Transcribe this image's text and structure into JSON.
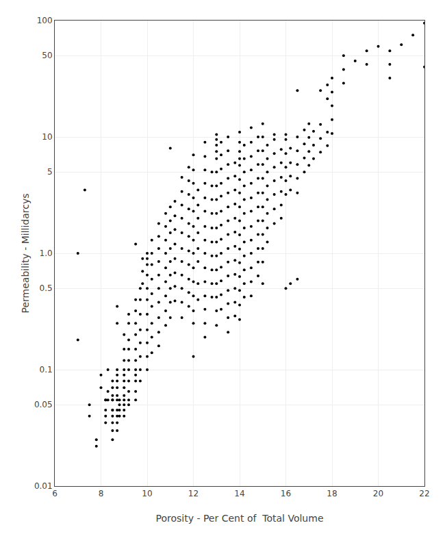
{
  "chart_data": {
    "type": "scatter",
    "xlabel": "Porosity - Per Cent of  Total Volume",
    "ylabel": "Permeability - Millidarcys",
    "log": "y",
    "grid": true,
    "color": "#000000",
    "marker": "circle",
    "xlim": [
      6,
      22
    ],
    "ylim": [
      0.01,
      100
    ],
    "xticks": [
      6,
      8,
      10,
      12,
      14,
      16,
      18,
      20,
      22
    ],
    "yticks": [
      0.01,
      0.05,
      0.1,
      0.5,
      {
        "value": 1.0,
        "label": "1.0"
      },
      5,
      10,
      50,
      100
    ],
    "x": [
      7.0,
      7.0,
      7.3,
      7.5,
      7.5,
      7.8,
      7.8,
      8.0,
      8.0,
      8.2,
      8.2,
      8.2,
      8.2,
      8.2,
      8.3,
      8.3,
      8.3,
      8.5,
      8.5,
      8.5,
      8.5,
      8.5,
      8.5,
      8.5,
      8.5,
      8.5,
      8.5,
      8.5,
      8.7,
      8.7,
      8.7,
      8.7,
      8.7,
      8.7,
      8.7,
      8.7,
      8.7,
      8.7,
      8.7,
      8.7,
      8.8,
      8.8,
      8.8,
      8.8,
      9.0,
      9.0,
      9.0,
      9.0,
      9.0,
      9.0,
      9.0,
      9.0,
      9.0,
      9.0,
      9.0,
      9.0,
      9.2,
      9.2,
      9.2,
      9.2,
      9.2,
      9.2,
      9.2,
      9.2,
      9.2,
      9.2,
      9.5,
      9.5,
      9.5,
      9.5,
      9.5,
      9.5,
      9.5,
      9.5,
      9.5,
      9.5,
      9.5,
      9.5,
      9.7,
      9.7,
      9.7,
      9.7,
      9.7,
      9.7,
      9.7,
      9.7,
      9.8,
      9.8,
      9.8,
      10.0,
      10.0,
      10.0,
      10.0,
      10.0,
      10.0,
      10.0,
      10.0,
      10.0,
      10.0,
      10.0,
      10.2,
      10.2,
      10.2,
      10.2,
      10.2,
      10.2,
      10.2,
      10.2,
      10.2,
      10.5,
      10.5,
      10.5,
      10.5,
      10.5,
      10.5,
      10.5,
      10.5,
      10.5,
      10.5,
      10.8,
      10.8,
      10.8,
      10.8,
      10.8,
      10.8,
      10.8,
      10.8,
      10.8,
      11.0,
      11.0,
      11.0,
      11.0,
      11.0,
      11.0,
      11.0,
      11.0,
      11.0,
      11.0,
      11.2,
      11.2,
      11.2,
      11.2,
      11.2,
      11.2,
      11.2,
      11.2,
      11.5,
      11.5,
      11.5,
      11.5,
      11.5,
      11.5,
      11.5,
      11.5,
      11.5,
      11.5,
      11.5,
      11.8,
      11.8,
      11.8,
      11.8,
      11.8,
      11.8,
      11.8,
      11.8,
      11.8,
      11.8,
      11.8,
      12.0,
      12.0,
      12.0,
      12.0,
      12.0,
      12.0,
      12.0,
      12.0,
      12.0,
      12.0,
      12.0,
      12.0,
      12.0,
      12.0,
      12.2,
      12.2,
      12.2,
      12.2,
      12.2,
      12.2,
      12.2,
      12.2,
      12.5,
      12.5,
      12.5,
      12.5,
      12.5,
      12.5,
      12.5,
      12.5,
      12.5,
      12.5,
      12.5,
      12.5,
      12.5,
      12.5,
      12.5,
      12.8,
      12.8,
      12.8,
      12.8,
      12.8,
      12.8,
      12.8,
      12.8,
      12.8,
      12.8,
      13.0,
      13.0,
      13.0,
      13.0,
      13.0,
      13.0,
      13.0,
      13.0,
      13.0,
      13.0,
      13.0,
      13.0,
      13.0,
      13.0,
      13.0,
      13.0,
      13.0,
      13.2,
      13.2,
      13.2,
      13.2,
      13.2,
      13.2,
      13.2,
      13.2,
      13.2,
      13.2,
      13.2,
      13.2,
      13.2,
      13.5,
      13.5,
      13.5,
      13.5,
      13.5,
      13.5,
      13.5,
      13.5,
      13.5,
      13.5,
      13.5,
      13.5,
      13.5,
      13.5,
      13.5,
      13.8,
      13.8,
      13.8,
      13.8,
      13.8,
      13.8,
      13.8,
      13.8,
      13.8,
      13.8,
      13.8,
      13.8,
      14.0,
      14.0,
      14.0,
      14.0,
      14.0,
      14.0,
      14.0,
      14.0,
      14.0,
      14.0,
      14.0,
      14.0,
      14.0,
      14.0,
      14.0,
      14.0,
      14.2,
      14.2,
      14.2,
      14.2,
      14.2,
      14.2,
      14.2,
      14.2,
      14.2,
      14.2,
      14.2,
      14.2,
      14.5,
      14.5,
      14.5,
      14.5,
      14.5,
      14.5,
      14.5,
      14.5,
      14.5,
      14.5,
      14.5,
      14.5,
      14.5,
      14.8,
      14.8,
      14.8,
      14.8,
      14.8,
      14.8,
      14.8,
      14.8,
      14.8,
      14.8,
      14.8,
      15.0,
      15.0,
      15.0,
      15.0,
      15.0,
      15.0,
      15.0,
      15.0,
      15.0,
      15.0,
      15.0,
      15.0,
      15.2,
      15.2,
      15.2,
      15.2,
      15.2,
      15.2,
      15.2,
      15.2,
      15.5,
      15.5,
      15.5,
      15.5,
      15.5,
      15.5,
      15.5,
      15.5,
      15.8,
      15.8,
      15.8,
      15.8,
      15.8,
      15.8,
      16.0,
      16.0,
      16.0,
      16.0,
      16.0,
      16.0,
      16.0,
      16.2,
      16.2,
      16.2,
      16.2,
      16.2,
      16.5,
      16.5,
      16.5,
      16.5,
      16.5,
      16.5,
      16.5,
      16.8,
      16.8,
      16.8,
      16.8,
      17.0,
      17.0,
      17.0,
      17.0,
      17.2,
      17.2,
      17.2,
      17.5,
      17.5,
      17.5,
      17.5,
      17.8,
      17.8,
      17.8,
      17.8,
      18.0,
      18.0,
      18.0,
      18.0,
      18.0,
      18.5,
      18.5,
      18.5,
      19.0,
      19.5,
      19.5,
      20.0,
      20.5,
      20.5,
      20.5,
      21.0,
      21.5,
      22.0,
      22.0
    ],
    "values": [
      1.0,
      0.18,
      3.5,
      0.05,
      0.04,
      0.025,
      0.022,
      0.09,
      0.07,
      0.055,
      0.045,
      0.04,
      0.035,
      0.055,
      0.1,
      0.065,
      0.055,
      0.08,
      0.07,
      0.06,
      0.055,
      0.045,
      0.04,
      0.035,
      0.03,
      0.025,
      0.055,
      0.045,
      0.1,
      0.09,
      0.08,
      0.07,
      0.06,
      0.055,
      0.045,
      0.04,
      0.035,
      0.03,
      0.25,
      0.35,
      0.055,
      0.05,
      0.045,
      0.04,
      0.2,
      0.15,
      0.12,
      0.1,
      0.09,
      0.08,
      0.07,
      0.06,
      0.055,
      0.05,
      0.045,
      0.04,
      0.3,
      0.25,
      0.18,
      0.15,
      0.12,
      0.1,
      0.08,
      0.065,
      0.055,
      0.05,
      0.4,
      0.32,
      0.25,
      0.2,
      0.15,
      0.12,
      0.1,
      0.08,
      0.065,
      0.055,
      0.09,
      1.2,
      0.5,
      0.4,
      0.3,
      0.22,
      0.17,
      0.13,
      0.1,
      0.08,
      0.9,
      0.7,
      0.55,
      1.0,
      0.9,
      0.8,
      0.65,
      0.5,
      0.4,
      0.3,
      0.22,
      0.17,
      0.13,
      0.1,
      1.3,
      1.0,
      0.8,
      0.6,
      0.45,
      0.35,
      0.25,
      0.19,
      0.14,
      1.8,
      1.4,
      1.1,
      0.85,
      0.65,
      0.5,
      0.38,
      0.28,
      0.21,
      0.16,
      2.2,
      1.7,
      1.3,
      1.0,
      0.75,
      0.57,
      0.43,
      0.32,
      0.24,
      8.0,
      2.5,
      1.9,
      1.5,
      1.1,
      0.85,
      0.65,
      0.5,
      0.38,
      0.28,
      2.8,
      2.1,
      1.6,
      1.2,
      0.9,
      0.68,
      0.52,
      0.39,
      4.5,
      3.4,
      2.6,
      2.0,
      1.5,
      1.1,
      0.85,
      0.65,
      0.5,
      0.38,
      0.28,
      5.5,
      4.2,
      3.2,
      2.4,
      1.8,
      1.4,
      1.05,
      0.8,
      0.6,
      0.46,
      0.35,
      7.0,
      5.2,
      4.0,
      3.0,
      2.3,
      1.7,
      1.3,
      1.0,
      0.75,
      0.57,
      0.43,
      0.32,
      0.25,
      0.13,
      0.55,
      0.4,
      3.5,
      2.6,
      2.0,
      1.5,
      1.1,
      0.85,
      9.0,
      6.8,
      5.2,
      4.0,
      3.0,
      2.3,
      1.7,
      1.3,
      1.0,
      0.75,
      0.57,
      0.43,
      0.33,
      0.25,
      0.19,
      5.0,
      3.8,
      2.9,
      2.2,
      1.65,
      1.25,
      0.95,
      0.72,
      0.55,
      0.42,
      8.5,
      6.5,
      5.0,
      3.8,
      2.9,
      2.2,
      1.65,
      1.25,
      0.95,
      0.72,
      0.55,
      0.42,
      0.32,
      0.24,
      7.5,
      9.5,
      10.5,
      9.0,
      7.0,
      5.3,
      4.0,
      3.1,
      2.3,
      1.75,
      1.32,
      1.0,
      0.76,
      0.58,
      0.44,
      0.33,
      10.0,
      7.6,
      5.8,
      4.4,
      3.3,
      2.5,
      1.9,
      1.45,
      1.1,
      0.84,
      0.64,
      0.48,
      0.37,
      0.28,
      0.21,
      6.0,
      4.6,
      3.5,
      2.65,
      2.0,
      1.52,
      1.15,
      0.87,
      0.66,
      0.5,
      0.38,
      0.29,
      7.5,
      5.7,
      4.3,
      3.3,
      2.5,
      1.9,
      1.44,
      1.09,
      0.83,
      0.63,
      0.48,
      0.36,
      0.27,
      6.5,
      9.0,
      11.0,
      8.5,
      6.5,
      5.0,
      3.8,
      2.9,
      2.2,
      1.65,
      1.25,
      0.95,
      0.72,
      0.55,
      0.42,
      12.0,
      9.0,
      6.8,
      5.2,
      4.0,
      3.0,
      2.3,
      1.7,
      1.3,
      1.0,
      0.75,
      0.57,
      0.43,
      10.0,
      7.6,
      5.8,
      4.4,
      3.3,
      2.5,
      1.9,
      1.45,
      1.1,
      0.84,
      0.64,
      13.0,
      10.0,
      7.6,
      5.8,
      4.4,
      3.3,
      2.5,
      1.9,
      1.45,
      1.1,
      0.84,
      0.55,
      8.5,
      6.5,
      5.0,
      3.8,
      2.9,
      2.2,
      1.65,
      1.25,
      9.5,
      7.2,
      5.5,
      4.2,
      3.2,
      2.4,
      1.8,
      10.5,
      7.8,
      6.0,
      4.5,
      3.4,
      2.6,
      2.0,
      9.5,
      7.2,
      5.5,
      4.2,
      3.2,
      10.5,
      0.5,
      8.0,
      6.0,
      4.6,
      3.5,
      0.55,
      10.0,
      7.6,
      5.8,
      4.4,
      3.3,
      0.6,
      25.0,
      11.5,
      8.7,
      6.6,
      5.0,
      13.0,
      9.9,
      7.5,
      5.7,
      11.2,
      8.5,
      6.5,
      25.0,
      12.8,
      9.7,
      7.4,
      28.0,
      21.3,
      11.0,
      8.4,
      32.0,
      24.3,
      18.5,
      14.1,
      10.7,
      50.0,
      38.0,
      29.0,
      45.0,
      55.0,
      42.0,
      60.0,
      55.0,
      42.0,
      32.0,
      62.0,
      75.0,
      95.0,
      40.0
    ]
  }
}
